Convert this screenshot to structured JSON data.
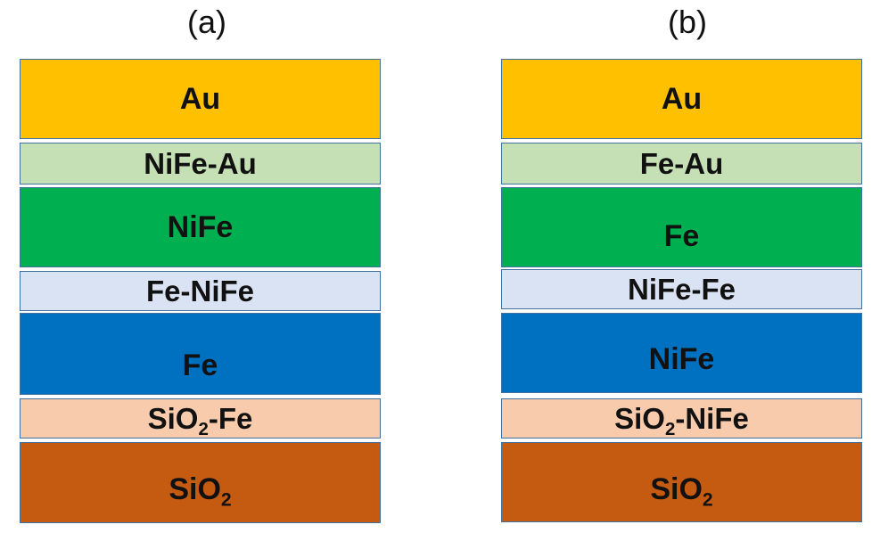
{
  "panels": {
    "a": {
      "label": "(a)",
      "layers": [
        {
          "text": "Au",
          "color": "#FFC000"
        },
        {
          "text": "NiFe-Au",
          "color": "#C5E0B4"
        },
        {
          "text": "NiFe",
          "color": "#00B050"
        },
        {
          "text": "Fe-NiFe",
          "color": "#DAE3F3"
        },
        {
          "text": "Fe",
          "color": "#0070C0"
        },
        {
          "text_main": "SiO",
          "text_sub": "2",
          "text_tail": "-Fe",
          "color": "#F8CBAD"
        },
        {
          "text_main": "SiO",
          "text_sub": "2",
          "text_tail": "",
          "color": "#C55A11"
        }
      ]
    },
    "b": {
      "label": "(b)",
      "layers": [
        {
          "text": "Au",
          "color": "#FFC000"
        },
        {
          "text": "Fe-Au",
          "color": "#C5E0B4"
        },
        {
          "text": "Fe",
          "color": "#00B050"
        },
        {
          "text": "NiFe-Fe",
          "color": "#DAE3F3"
        },
        {
          "text": "NiFe",
          "color": "#0070C0"
        },
        {
          "text_main": "SiO",
          "text_sub": "2",
          "text_tail": "-NiFe",
          "color": "#F8CBAD"
        },
        {
          "text_main": "SiO",
          "text_sub": "2",
          "text_tail": "",
          "color": "#C55A11"
        }
      ]
    }
  }
}
